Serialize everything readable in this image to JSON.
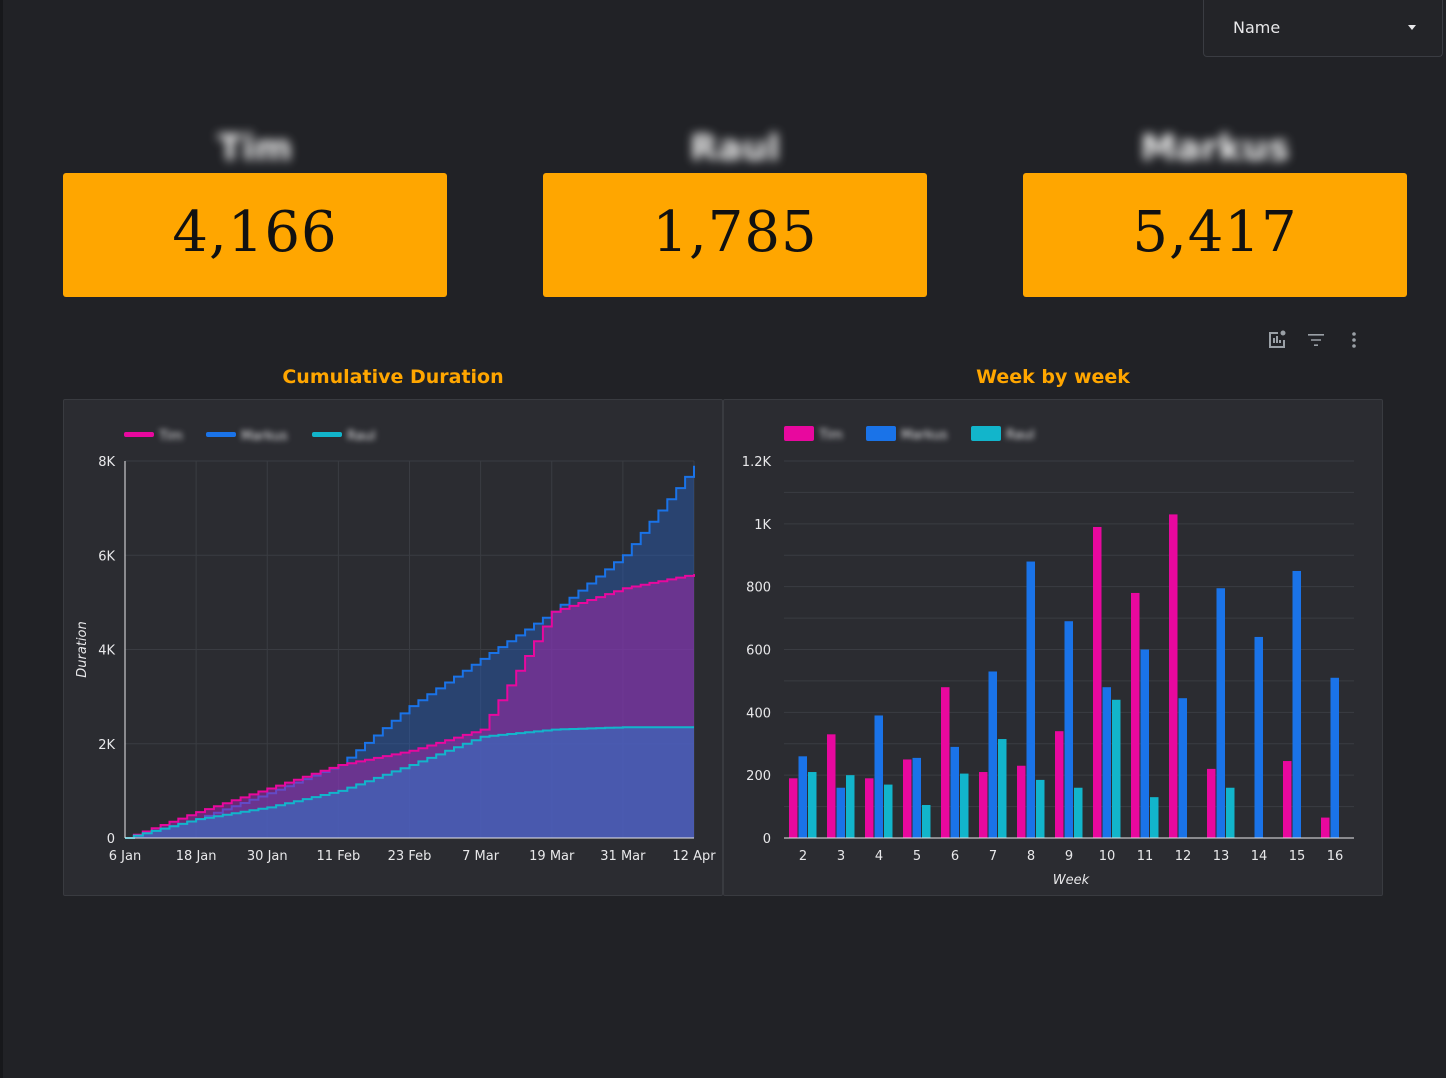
{
  "filter": {
    "label": "Name"
  },
  "kpis": [
    {
      "name": "Tim",
      "value": "4,166"
    },
    {
      "name": "Raul",
      "value": "1,785"
    },
    {
      "name": "Markus",
      "value": "5,417"
    }
  ],
  "toolbar": {
    "icons": [
      "explore-chart-icon",
      "filter-icon",
      "more-vert-icon"
    ]
  },
  "colors": {
    "accent": "#ffa600",
    "tim": "#e8089e",
    "markus": "#1a73e8",
    "raul": "#12b5cb",
    "background": "#212226",
    "panel": "#2b2c31"
  },
  "charts": {
    "cumulative": {
      "title": "Cumulative Duration"
    },
    "weekly": {
      "title": "Week by week"
    }
  },
  "chart_data": [
    {
      "type": "area",
      "title": "Cumulative Duration",
      "xlabel": "",
      "ylabel": "Duration",
      "ylim": [
        0,
        8000
      ],
      "yticks": [
        "0",
        "2K",
        "4K",
        "6K",
        "8K"
      ],
      "xticks": [
        "6 Jan",
        "18 Jan",
        "30 Jan",
        "11 Feb",
        "23 Feb",
        "7 Mar",
        "19 Mar",
        "31 Mar",
        "12 Apr"
      ],
      "x": [
        "2024-01-06",
        "2024-01-18",
        "2024-01-30",
        "2024-02-11",
        "2024-02-23",
        "2024-03-07",
        "2024-03-19",
        "2024-03-31",
        "2024-04-12"
      ],
      "legend_position": "top-left",
      "grid": true,
      "series": [
        {
          "name": "Tim",
          "values": [
            0,
            550,
            1050,
            1550,
            1850,
            2300,
            4800,
            5300,
            5600
          ]
        },
        {
          "name": "Markus",
          "values": [
            0,
            400,
            950,
            1550,
            2800,
            3800,
            4800,
            6000,
            7900
          ]
        },
        {
          "name": "Raul",
          "values": [
            0,
            400,
            650,
            1000,
            1550,
            2150,
            2300,
            2350,
            2350
          ]
        }
      ]
    },
    {
      "type": "bar",
      "title": "Week by week",
      "xlabel": "Week",
      "ylabel": "",
      "ylim": [
        0,
        1200
      ],
      "yticks": [
        "0",
        "200",
        "400",
        "600",
        "800",
        "1K",
        "1.2K"
      ],
      "categories": [
        "2",
        "3",
        "4",
        "5",
        "6",
        "7",
        "8",
        "9",
        "10",
        "11",
        "12",
        "13",
        "14",
        "15",
        "16"
      ],
      "legend_position": "top-left",
      "grid": true,
      "series": [
        {
          "name": "Tim",
          "values": [
            190,
            330,
            190,
            250,
            480,
            210,
            230,
            340,
            990,
            780,
            1030,
            220,
            0,
            245,
            65
          ]
        },
        {
          "name": "Markus",
          "values": [
            260,
            160,
            390,
            255,
            290,
            530,
            880,
            690,
            480,
            600,
            445,
            795,
            640,
            850,
            510
          ]
        },
        {
          "name": "Raul",
          "values": [
            210,
            200,
            170,
            105,
            205,
            315,
            185,
            160,
            440,
            130,
            0,
            160,
            0,
            0,
            0
          ]
        }
      ]
    }
  ]
}
